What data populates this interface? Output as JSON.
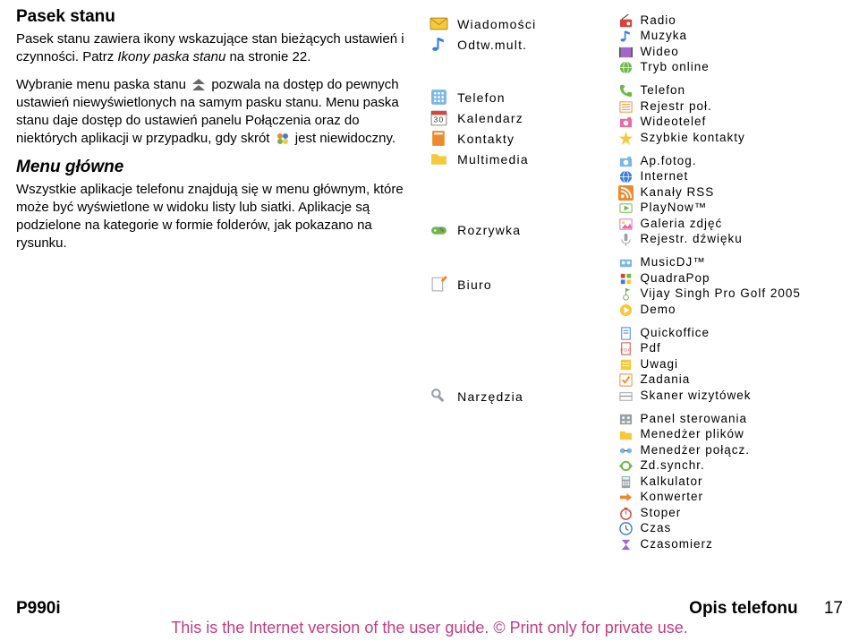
{
  "colors": {
    "text": "#000000",
    "disclaimer": "#c23d81",
    "icon_yellow": "#f5c93b",
    "icon_blue": "#3a7fd9",
    "icon_lightblue": "#7ab6e8",
    "icon_green": "#6eb84a",
    "icon_red": "#d9443a",
    "icon_orange": "#ee8a2e",
    "icon_pink": "#e86aa5",
    "icon_gray": "#9aa0a6",
    "icon_purple": "#a268c9"
  },
  "left": {
    "h1": "Pasek stanu",
    "p1_pre": "Pasek stanu zawiera ikony wskazujące stan bieżących ustawień i czynności. Patrz ",
    "p1_italic": "Ikony paska stanu",
    "p1_post": " na stronie 22.",
    "p2_a": "Wybranie menu paska stanu ",
    "p2_b": " pozwala na dostęp do pewnych ustawień niewyświetlonych na samym pasku stanu. Menu paska stanu daje dostęp do ustawień panelu Połączenia oraz do niektórych aplikacji w przypadku, gdy skrót ",
    "p2_c": " jest niewidoczny.",
    "h2": "Menu główne",
    "p3": "Wszystkie aplikacje telefonu znajdują się w menu głównym, które może być wyświetlone w widoku listy lub siatki. Aplikacje są podzielone na kategorie w formie folderów, jak pokazano na rysunku."
  },
  "mid_items": [
    {
      "key": "wiadomosci",
      "label": "Wiadomości",
      "icon": "envelope",
      "color": "#f5c93b",
      "connect": false
    },
    {
      "key": "odtw",
      "label": "Odtw.mult.",
      "icon": "note",
      "color": "#3a7fd9",
      "connect": true,
      "spacer_after": 34
    },
    {
      "key": "telefon",
      "label": "Telefon",
      "icon": "grid",
      "color": "#7ab6e8",
      "connect": true
    },
    {
      "key": "kalendarz",
      "label": "Kalendarz",
      "icon": "calendar",
      "color": "#d9443a",
      "connect": false
    },
    {
      "key": "kontakty",
      "label": "Kontakty",
      "icon": "book",
      "color": "#ee8a2e",
      "connect": false
    },
    {
      "key": "multimedia",
      "label": "Multimedia",
      "icon": "folder",
      "color": "#f5c93b",
      "connect": true,
      "spacer_after": 54
    },
    {
      "key": "rozrywka",
      "label": "Rozrywka",
      "icon": "gamepad",
      "color": "#6eb84a",
      "connect": true,
      "spacer_after": 36
    },
    {
      "key": "biuro",
      "label": "Biuro",
      "icon": "edit",
      "color": "#ee8a2e",
      "connect": true,
      "spacer_after": 100
    },
    {
      "key": "narzedzia",
      "label": "Narzędzia",
      "icon": "tools",
      "color": "#9aa0a6",
      "connect": true
    }
  ],
  "right_groups": [
    {
      "items": [
        {
          "label": "Radio",
          "icon": "radio",
          "color": "#d9443a"
        },
        {
          "label": "Muzyka",
          "icon": "note",
          "color": "#3a7fd9"
        },
        {
          "label": "Wideo",
          "icon": "film",
          "color": "#a268c9"
        },
        {
          "label": "Tryb online",
          "icon": "globe",
          "color": "#6eb84a"
        }
      ]
    },
    {
      "items": [
        {
          "label": "Telefon",
          "icon": "phone",
          "color": "#6eb84a"
        },
        {
          "label": "Rejestr poł.",
          "icon": "list",
          "color": "#ee8a2e"
        },
        {
          "label": "Wideotelef",
          "icon": "camera",
          "color": "#e86aa5"
        },
        {
          "label": "Szybkie kontakty",
          "icon": "star",
          "color": "#f5c93b"
        }
      ]
    },
    {
      "items": [
        {
          "label": "Ap.fotog.",
          "icon": "camera",
          "color": "#7ab6e8"
        },
        {
          "label": "Internet",
          "icon": "globe",
          "color": "#3a7fd9"
        },
        {
          "label": "Kanały RSS",
          "icon": "rss",
          "color": "#ee8a2e"
        },
        {
          "label": "PlayNow™",
          "icon": "play",
          "color": "#6eb84a"
        },
        {
          "label": "Galeria zdjęć",
          "icon": "image",
          "color": "#e86aa5"
        },
        {
          "label": "Rejestr. dźwięku",
          "icon": "mic",
          "color": "#9aa0a6"
        }
      ]
    },
    {
      "items": [
        {
          "label": "MusicDJ™",
          "icon": "dj",
          "color": "#7ab6e8"
        },
        {
          "label": "QuadraPop",
          "icon": "grid4",
          "color": "#d9443a"
        },
        {
          "label": "Vijay Singh Pro Golf 2005",
          "icon": "golf",
          "color": "#6eb84a"
        },
        {
          "label": "Demo",
          "icon": "demo",
          "color": "#f5c93b"
        }
      ]
    },
    {
      "items": [
        {
          "label": "Quickoffice",
          "icon": "doc",
          "color": "#3a7fd9"
        },
        {
          "label": "Pdf",
          "icon": "pdf",
          "color": "#d9443a"
        },
        {
          "label": "Uwagi",
          "icon": "note2",
          "color": "#f5c93b"
        },
        {
          "label": "Zadania",
          "icon": "check",
          "color": "#ee8a2e"
        },
        {
          "label": "Skaner wizytówek",
          "icon": "scan",
          "color": "#9aa0a6"
        }
      ]
    },
    {
      "items": [
        {
          "label": "Panel sterowania",
          "icon": "panel",
          "color": "#9aa0a6"
        },
        {
          "label": "Menedżer plików",
          "icon": "files",
          "color": "#f5c93b"
        },
        {
          "label": "Menedżer połącz.",
          "icon": "conn",
          "color": "#7ab6e8"
        },
        {
          "label": "Zd.synchr.",
          "icon": "sync",
          "color": "#6eb84a"
        },
        {
          "label": "Kalkulator",
          "icon": "calc",
          "color": "#9aa0a6"
        },
        {
          "label": "Konwerter",
          "icon": "conv",
          "color": "#ee8a2e"
        },
        {
          "label": "Stoper",
          "icon": "stop",
          "color": "#d9443a"
        },
        {
          "label": "Czas",
          "icon": "clock",
          "color": "#3a7fd9"
        },
        {
          "label": "Czasomierz",
          "icon": "timer",
          "color": "#a268c9"
        }
      ]
    }
  ],
  "footer": {
    "left": "P990i",
    "right_label": "Opis telefonu",
    "page_num": "17"
  },
  "disclaimer": "This is the Internet version of the user guide. © Print only for private use."
}
